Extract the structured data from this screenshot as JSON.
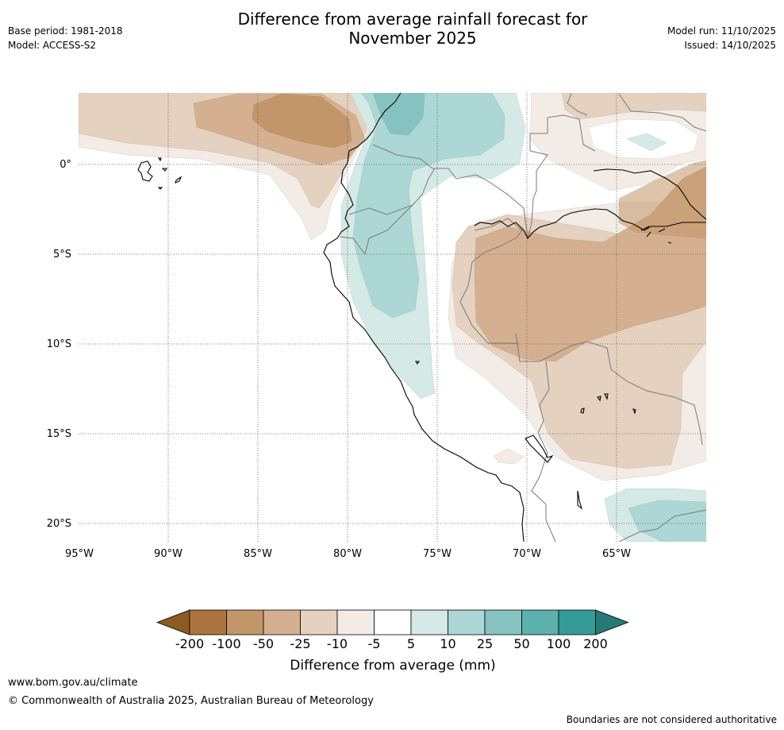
{
  "header": {
    "title_line1": "Difference from average rainfall forecast for",
    "title_line2": "November 2025",
    "base_period": "Base period: 1981-2018",
    "model": "Model: ACCESS-S2",
    "model_run": "Model run: 11/10/2025",
    "issued": "Issued: 14/10/2025"
  },
  "map": {
    "lat_labels": [
      "0°",
      "5°S",
      "10°S",
      "15°S",
      "20°S"
    ],
    "lon_labels": [
      "95°W",
      "90°W",
      "85°W",
      "80°W",
      "75°W",
      "70°W",
      "65°W"
    ]
  },
  "colorbar": {
    "ticks": [
      "-200",
      "-100",
      "-50",
      "-25",
      "-10",
      "-5",
      "5",
      "10",
      "25",
      "50",
      "100",
      "200"
    ],
    "colors": [
      "#8c5a23",
      "#ad7440",
      "#c3966a",
      "#d4b090",
      "#e4d1bf",
      "#f3ece6",
      "#ffffff",
      "#d5e9e7",
      "#acd7d5",
      "#86c3c0",
      "#5cb0ad",
      "#359b97",
      "#257a77"
    ],
    "label": "Difference from average (mm)"
  },
  "footer": {
    "website": "www.bom.gov.au/climate",
    "copyright": "© Commonwealth of Australia 2025, Australian Bureau of Meteorology",
    "disclaimer": "Boundaries are not considered authoritative"
  }
}
